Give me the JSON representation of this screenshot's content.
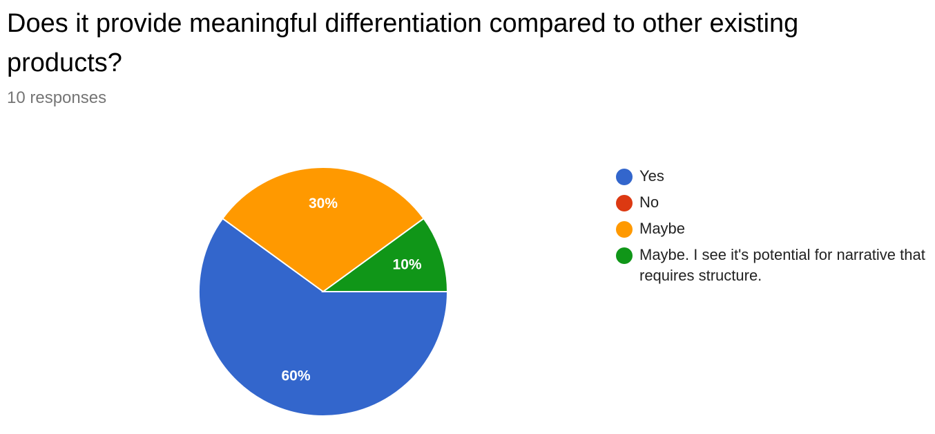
{
  "question": {
    "title": "Does it provide meaningful differentiation compared to other existing products?",
    "response_count": "10 responses"
  },
  "chart_data": {
    "type": "pie",
    "title": "Does it provide meaningful differentiation compared to other existing products?",
    "legend_position": "right",
    "slices": [
      {
        "label": "Yes",
        "value": 60,
        "display": "60%",
        "color": "#3366cc"
      },
      {
        "label": "No",
        "value": 0,
        "display": "",
        "color": "#dc3912"
      },
      {
        "label": "Maybe",
        "value": 30,
        "display": "30%",
        "color": "#ff9900"
      },
      {
        "label": "Maybe. I see it's potential for narrative that requires structure.",
        "value": 10,
        "display": "10%",
        "color": "#109618"
      }
    ]
  }
}
